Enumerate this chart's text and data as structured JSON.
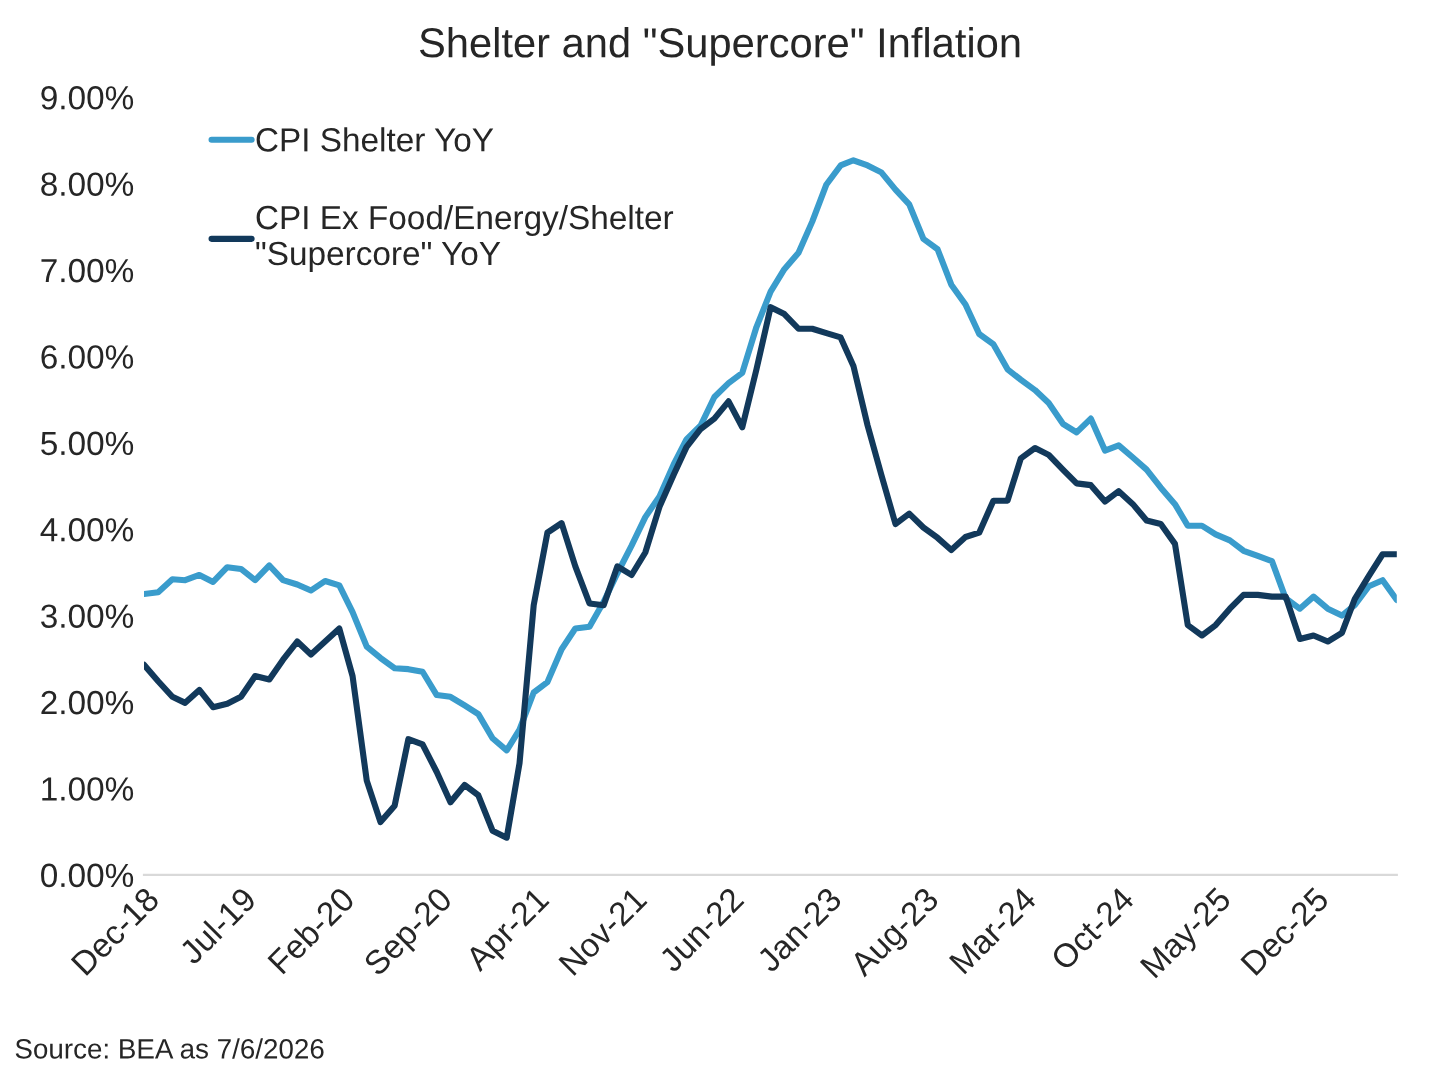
{
  "chart_data": {
    "type": "line",
    "title": "Shelter and \"Supercore\" Inflation",
    "x": [
      "2018-12",
      "2019-01",
      "2019-02",
      "2019-03",
      "2019-04",
      "2019-05",
      "2019-06",
      "2019-07",
      "2019-08",
      "2019-09",
      "2019-10",
      "2019-11",
      "2019-12",
      "2020-01",
      "2020-02",
      "2020-03",
      "2020-04",
      "2020-05",
      "2020-06",
      "2020-07",
      "2020-08",
      "2020-09",
      "2020-10",
      "2020-11",
      "2020-12",
      "2021-01",
      "2021-02",
      "2021-03",
      "2021-04",
      "2021-05",
      "2021-06",
      "2021-07",
      "2021-08",
      "2021-09",
      "2021-10",
      "2021-11",
      "2021-12",
      "2022-01",
      "2022-02",
      "2022-03",
      "2022-04",
      "2022-05",
      "2022-06",
      "2022-07",
      "2022-08",
      "2022-09",
      "2022-10",
      "2022-11",
      "2022-12",
      "2023-01",
      "2023-02",
      "2023-03",
      "2023-04",
      "2023-05",
      "2023-06",
      "2023-07",
      "2023-08",
      "2023-09",
      "2023-10",
      "2023-11",
      "2023-12",
      "2024-01",
      "2024-02",
      "2024-03",
      "2024-04",
      "2024-05",
      "2024-06",
      "2024-07",
      "2024-08",
      "2024-09",
      "2024-10",
      "2024-11",
      "2024-12",
      "2025-01",
      "2025-02",
      "2025-03",
      "2025-04",
      "2025-05",
      "2025-06",
      "2025-07",
      "2025-08",
      "2025-09",
      "2025-10",
      "2025-11",
      "2025-12",
      "2026-01",
      "2026-02",
      "2026-03",
      "2026-04",
      "2026-05",
      "2026-06"
    ],
    "series": [
      {
        "name": "CPI Shelter YoY",
        "color": "#3a9ccc",
        "values": [
          3.25,
          3.27,
          3.42,
          3.41,
          3.47,
          3.39,
          3.56,
          3.54,
          3.41,
          3.58,
          3.41,
          3.36,
          3.29,
          3.4,
          3.35,
          3.04,
          2.64,
          2.51,
          2.39,
          2.38,
          2.35,
          2.08,
          2.06,
          1.96,
          1.86,
          1.58,
          1.44,
          1.68,
          2.11,
          2.23,
          2.61,
          2.85,
          2.87,
          3.16,
          3.49,
          3.81,
          4.14,
          4.38,
          4.75,
          5.04,
          5.2,
          5.53,
          5.69,
          5.81,
          6.34,
          6.75,
          7.01,
          7.2,
          7.56,
          7.99,
          8.21,
          8.27,
          8.21,
          8.13,
          7.93,
          7.76,
          7.36,
          7.24,
          6.83,
          6.6,
          6.26,
          6.14,
          5.85,
          5.73,
          5.61,
          5.46,
          5.22,
          5.12,
          5.28,
          4.91,
          4.97,
          4.83,
          4.69,
          4.48,
          4.29,
          4.04,
          4.04,
          3.94,
          3.87,
          3.75,
          3.69,
          3.63,
          3.2,
          3.08,
          3.22,
          3.08,
          3.0,
          3.12,
          3.34,
          3.41,
          3.18
        ]
      },
      {
        "name": "CPI Ex Food/Energy/Shelter\n\"Supercore\" YoY",
        "color": "#12395b",
        "values": [
          2.43,
          2.24,
          2.06,
          1.99,
          2.14,
          1.94,
          1.98,
          2.06,
          2.3,
          2.26,
          2.49,
          2.7,
          2.55,
          2.7,
          2.85,
          2.3,
          1.09,
          0.61,
          0.8,
          1.57,
          1.51,
          1.19,
          0.84,
          1.04,
          0.92,
          0.51,
          0.43,
          1.29,
          3.12,
          3.96,
          4.07,
          3.57,
          3.14,
          3.12,
          3.57,
          3.47,
          3.73,
          4.26,
          4.63,
          4.95,
          5.16,
          5.28,
          5.48,
          5.18,
          5.85,
          6.57,
          6.49,
          6.32,
          6.32,
          6.27,
          6.22,
          5.89,
          5.2,
          4.63,
          4.06,
          4.18,
          4.02,
          3.9,
          3.76,
          3.91,
          3.96,
          4.33,
          4.33,
          4.82,
          4.94,
          4.86,
          4.69,
          4.53,
          4.51,
          4.32,
          4.44,
          4.29,
          4.1,
          4.06,
          3.83,
          2.89,
          2.77,
          2.89,
          3.08,
          3.24,
          3.24,
          3.22,
          3.22,
          2.73,
          2.77,
          2.7,
          2.8,
          3.19,
          3.46,
          3.71,
          3.71
        ]
      }
    ],
    "xlim": [
      "2018-12",
      "2026-06"
    ],
    "xticks": [
      {
        "value": "2018-12",
        "label": "Dec-18"
      },
      {
        "value": "2019-07",
        "label": "Jul-19"
      },
      {
        "value": "2020-02",
        "label": "Feb-20"
      },
      {
        "value": "2020-09",
        "label": "Sep-20"
      },
      {
        "value": "2021-04",
        "label": "Apr-21"
      },
      {
        "value": "2021-11",
        "label": "Nov-21"
      },
      {
        "value": "2022-06",
        "label": "Jun-22"
      },
      {
        "value": "2023-01",
        "label": "Jan-23"
      },
      {
        "value": "2023-08",
        "label": "Aug-23"
      },
      {
        "value": "2024-03",
        "label": "Mar-24"
      },
      {
        "value": "2024-10",
        "label": "Oct-24"
      },
      {
        "value": "2025-05",
        "label": "May-25"
      },
      {
        "value": "2025-12",
        "label": "Dec-25"
      }
    ],
    "ylim": [
      0,
      9
    ],
    "yticks": [
      {
        "value": 0,
        "label": "0.00%"
      },
      {
        "value": 1,
        "label": "1.00%"
      },
      {
        "value": 2,
        "label": "2.00%"
      },
      {
        "value": 3,
        "label": "3.00%"
      },
      {
        "value": 4,
        "label": "4.00%"
      },
      {
        "value": 5,
        "label": "5.00%"
      },
      {
        "value": 6,
        "label": "6.00%"
      },
      {
        "value": 7,
        "label": "7.00%"
      },
      {
        "value": 8,
        "label": "8.00%"
      },
      {
        "value": 9,
        "label": "9.00%"
      }
    ],
    "grid": false,
    "legend": "top left",
    "annotations": [
      "Source: BEA as 7/6/2026"
    ]
  }
}
